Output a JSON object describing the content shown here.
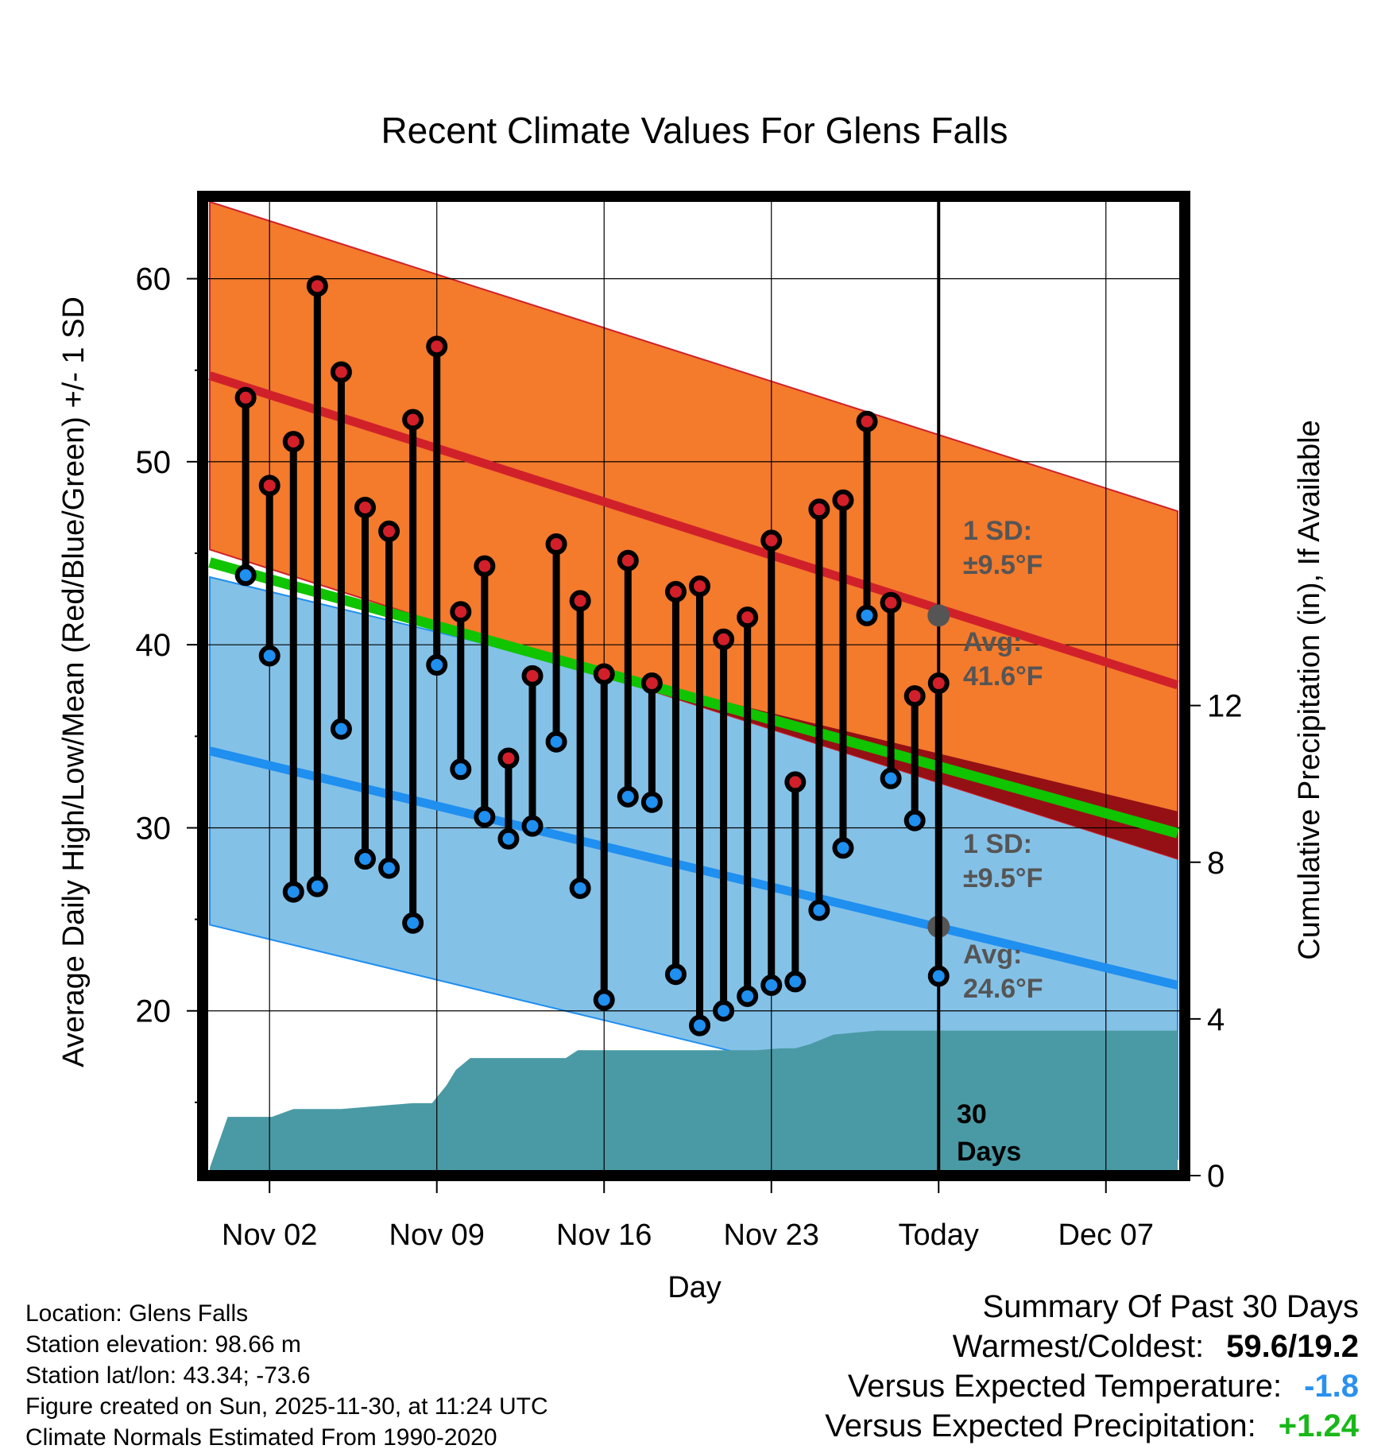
{
  "chart_data": {
    "type": "line",
    "title": "Recent Climate Values For Glens Falls",
    "xlabel": "Day",
    "ylabel": "Average Daily High/Low/Mean (Red/Blue/Green) +/- 1 SD",
    "y2label": "Cumulative Precipitation (in), If Available",
    "ylim": [
      11,
      64.5
    ],
    "y_ticks": [
      "60",
      "50",
      "40",
      "30",
      "20"
    ],
    "y_tick_values": [
      60,
      50,
      40,
      30,
      20
    ],
    "y2lim": [
      0,
      25
    ],
    "y2_ticks": [
      "12",
      "8",
      "4",
      "0"
    ],
    "y2_tick_values": [
      12,
      8,
      4,
      0
    ],
    "xlim": [
      -1.8,
      39.3
    ],
    "x_ticks": [
      "Nov 02",
      "Nov 09",
      "Nov 16",
      "Nov 23",
      "Today",
      "Dec 07"
    ],
    "x_tick_values": [
      1,
      8,
      15,
      22,
      29,
      36
    ],
    "today_index": 29,
    "today_label": [
      "30",
      "Days"
    ],
    "normal_high": {
      "x": [
        -1.5,
        39
      ],
      "mean": [
        54.7,
        37.8
      ],
      "sd": 9.5,
      "sd_label": [
        "1 SD:",
        "±9.5°F"
      ],
      "avg_label": [
        "Avg:",
        "41.6°F"
      ],
      "today_value": 41.6
    },
    "normal_low": {
      "x": [
        -1.5,
        39
      ],
      "mean": [
        34.2,
        21.4
      ],
      "sd": 9.5,
      "sd_label": [
        "1 SD:",
        "±9.5°F"
      ],
      "avg_label": [
        "Avg:",
        "24.6°F"
      ],
      "today_value": 24.6
    },
    "normal_mean": {
      "x": [
        -1.5,
        39
      ],
      "values": [
        44.5,
        29.7
      ]
    },
    "daily": {
      "x": [
        0,
        1,
        2,
        3,
        4,
        5,
        6,
        7,
        8,
        9,
        10,
        11,
        12,
        13,
        14,
        15,
        16,
        17,
        18,
        19,
        20,
        21,
        22,
        23,
        24,
        25,
        26,
        27,
        28,
        29
      ],
      "high": [
        53.5,
        48.7,
        51.1,
        59.6,
        54.9,
        47.5,
        46.2,
        52.3,
        56.3,
        41.8,
        44.3,
        33.8,
        38.3,
        45.5,
        42.4,
        38.4,
        44.6,
        37.9,
        42.9,
        43.2,
        40.3,
        41.5,
        45.7,
        32.5,
        47.4,
        47.9,
        52.2,
        42.3,
        37.2,
        37.9
      ],
      "low": [
        43.8,
        39.4,
        26.5,
        26.8,
        35.4,
        28.3,
        27.8,
        24.8,
        38.9,
        33.2,
        30.6,
        29.4,
        30.1,
        34.7,
        26.7,
        20.6,
        31.7,
        31.4,
        22.0,
        19.2,
        20.0,
        20.8,
        21.4,
        21.6,
        25.5,
        28.9,
        41.6,
        32.7,
        30.4,
        21.9
      ]
    },
    "precip": {
      "x": [
        -1.5,
        -0.75,
        0.9,
        1.1,
        2.0,
        3.0,
        4.0,
        5.0,
        6.0,
        7.0,
        7.8,
        8.4,
        8.8,
        9.4,
        11.0,
        12.5,
        13.4,
        13.9,
        15.0,
        16.4,
        17.4,
        18.4,
        20.0,
        21.4,
        22.4,
        23.0,
        23.6,
        24.6,
        26.4,
        29.0,
        39.0
      ],
      "values": [
        0.2,
        1.5,
        1.5,
        1.5,
        1.7,
        1.7,
        1.7,
        1.75,
        1.8,
        1.85,
        1.85,
        2.3,
        2.7,
        3.0,
        3.0,
        3.0,
        3.0,
        3.2,
        3.2,
        3.2,
        3.2,
        3.2,
        3.2,
        3.2,
        3.25,
        3.25,
        3.35,
        3.6,
        3.7,
        3.7,
        3.7
      ]
    }
  },
  "colors": {
    "high_band": "#f47a2c",
    "high_line": "#d0212a",
    "low_band": "#84c1e7",
    "low_line": "#1f8ff0",
    "mean_line": "#10c400",
    "precip": "#4a9aa5",
    "overlap": "#951014",
    "label_gray": "#555555"
  },
  "footer": {
    "location": "Location: Glens Falls",
    "elevation": "Station elevation: 98.66 m",
    "latlon": "Station lat/lon: 43.34; -73.6",
    "created": "Figure created on Sun, 2025-11-30, at 11:24 UTC",
    "normals": "Climate Normals Estimated From 1990-2020"
  },
  "summary": {
    "title": "Summary Of Past 30 Days",
    "warm_cold_label": "Warmest/Coldest:",
    "warm_cold_value": "59.6/19.2",
    "temp_label": "Versus Expected Temperature:",
    "temp_value": "-1.8",
    "temp_color": "#2b91ef",
    "precip_label": "Versus Expected Precipitation:",
    "precip_value": "+1.24",
    "precip_color": "#18b818"
  }
}
